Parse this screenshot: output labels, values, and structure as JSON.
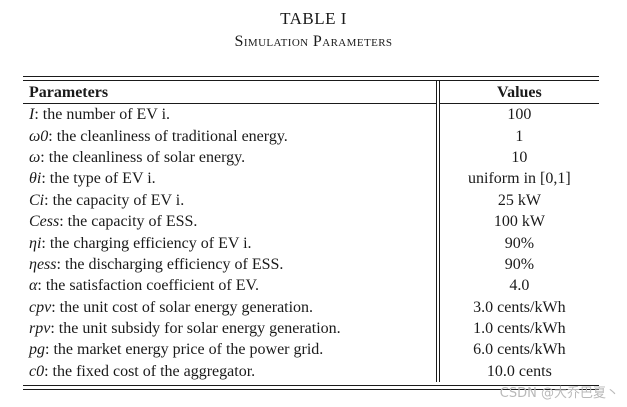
{
  "caption": {
    "title": "TABLE I",
    "subtitle": "Simulation Parameters"
  },
  "table": {
    "headers": {
      "param": "Parameters",
      "value": "Values"
    },
    "rows": [
      {
        "symbol": "I",
        "desc": ": the number of EV i.",
        "value": "100"
      },
      {
        "symbol": "ω0",
        "desc": ": the cleanliness of traditional energy.",
        "value": "1"
      },
      {
        "symbol": "ω",
        "desc": ": the cleanliness of solar energy.",
        "value": "10"
      },
      {
        "symbol": "θi",
        "desc": ": the type of EV i.",
        "value": "uniform in [0,1]"
      },
      {
        "symbol": "Ci",
        "desc": ": the capacity of EV i.",
        "value": "25 kW"
      },
      {
        "symbol": "Cess",
        "desc": ": the capacity of ESS.",
        "value": "100 kW"
      },
      {
        "symbol": "ηi",
        "desc": ": the charging efficiency of EV i.",
        "value": "90%"
      },
      {
        "symbol": "ηess",
        "desc": ": the discharging efficiency of ESS.",
        "value": "90%"
      },
      {
        "symbol": "α",
        "desc": ": the satisfaction coefficient of EV.",
        "value": "4.0"
      },
      {
        "symbol": "cpv",
        "desc": ": the unit cost of solar energy generation.",
        "value": "3.0 cents/kWh"
      },
      {
        "symbol": "rpv",
        "desc": ": the unit subsidy for solar energy generation.",
        "value": "1.0 cents/kWh"
      },
      {
        "symbol": "pg",
        "desc": ": the market energy price of the power grid.",
        "value": "6.0 cents/kWh"
      },
      {
        "symbol": "c0",
        "desc": ": the fixed cost of the aggregator.",
        "value": "10.0 cents"
      }
    ]
  },
  "watermark": "CSDN @大乔巴夏丶"
}
